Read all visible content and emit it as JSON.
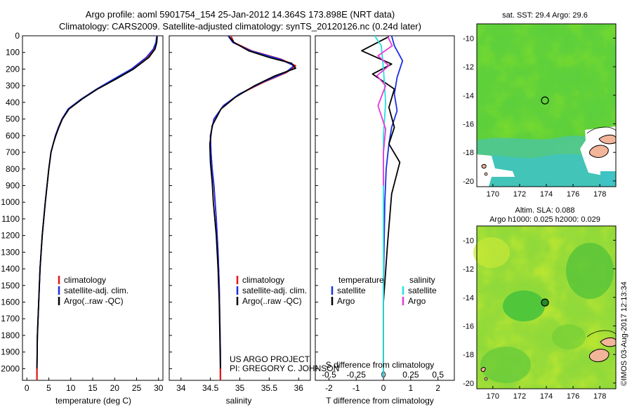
{
  "title": {
    "line1": "Argo profile: aoml 5901754_154 25-Jan-2012 14.364S 173.898E (NRT data)",
    "line2": "Climatology: CARS2009. Satellite-adjusted climatology: synTS_20120126.nc (0.24d later)"
  },
  "colors": {
    "climatology": "#e8141a",
    "satellite": "#1a2ee6",
    "argo": "#000000",
    "sal_satellite": "#25e0e0",
    "sal_argo": "#e83ad8",
    "map_marker": "#2a8a2a",
    "land": "#f2b59a",
    "missing": "#ffffff"
  },
  "depth_axis": {
    "ticks": [
      0,
      100,
      200,
      300,
      400,
      500,
      600,
      700,
      800,
      900,
      1000,
      1100,
      1200,
      1300,
      1400,
      1500,
      1600,
      1700,
      1800,
      1900,
      2000
    ],
    "ylim": [
      0,
      2070
    ],
    "inverted": true
  },
  "panels": {
    "temperature": {
      "xlabel": "temperature (deg C)"
    },
    "salinity": {
      "xlabel": "salinity"
    },
    "difference": {
      "xlabel_top": "S difference from climatology",
      "xlabel_bottom": "T difference from climatology"
    }
  },
  "legend_profiles": {
    "climatology": "climatology",
    "satellite": "satellite-adj. clim.",
    "argo": "Argo(..raw -QC)"
  },
  "legend_diff": {
    "temperature_header": "temperature",
    "salinity_header": "salinity",
    "satellite": "satellite",
    "argo": "Argo"
  },
  "project": {
    "line1": "US ARGO PROJECT",
    "line2": "PI: GREGORY C. JOHNSON"
  },
  "maps": {
    "sst": {
      "title": "sat. SST: 29.4  Argo: 29.6"
    },
    "sla": {
      "title1": "Altim. SLA: 0.088",
      "title2": "Argo h1000: 0.025 h2000: 0.029"
    },
    "lon_ticks": [
      170,
      172,
      174,
      176,
      178
    ],
    "lat_ticks": [
      -10,
      -12,
      -14,
      -16,
      -18,
      -20
    ],
    "marker": {
      "lon": 173.898,
      "lat": -14.364
    }
  },
  "credit": "©IMOS 03-Aug-2017 12:13:34",
  "chart_data": [
    {
      "type": "line",
      "name": "temperature-profile",
      "xlabel": "temperature (deg C)",
      "ylabel": "depth",
      "xlim": [
        -1,
        31
      ],
      "ylim": [
        0,
        2070
      ],
      "xticks": [
        0,
        5,
        10,
        15,
        20,
        25,
        30
      ],
      "series": [
        {
          "name": "climatology",
          "color_key": "climatology",
          "x": [
            29.7,
            29.5,
            29.0,
            27.5,
            24.0,
            20.0,
            16.0,
            12.5,
            9.5,
            8.0,
            7.2,
            6.5,
            6.0,
            5.5,
            5.0,
            4.2,
            3.5,
            3.0,
            2.7,
            2.4,
            2.3,
            2.3
          ],
          "depth": [
            0,
            40,
            80,
            130,
            200,
            260,
            320,
            380,
            440,
            500,
            550,
            600,
            650,
            700,
            800,
            1000,
            1200,
            1400,
            1600,
            1800,
            2000,
            2050
          ]
        },
        {
          "name": "satellite-adj. clim.",
          "color_key": "satellite",
          "x": [
            29.6,
            29.4,
            28.8,
            27.2,
            23.8,
            19.8,
            15.9,
            12.4,
            9.4,
            8.0,
            7.2,
            6.5,
            6.0,
            5.5,
            5.0,
            4.2,
            3.5,
            3.0,
            2.7,
            2.4,
            2.3,
            2.3
          ],
          "depth": [
            0,
            40,
            80,
            130,
            200,
            260,
            320,
            380,
            440,
            500,
            550,
            600,
            650,
            700,
            800,
            1000,
            1200,
            1400,
            1600,
            1800,
            2000,
            2050
          ]
        },
        {
          "name": "Argo(..raw -QC)",
          "color_key": "argo",
          "x": [
            29.7,
            29.6,
            29.2,
            27.8,
            24.3,
            20.3,
            16.1,
            12.6,
            9.6,
            8.1,
            7.3,
            6.6,
            6.0,
            5.5,
            5.0,
            4.2,
            3.5,
            3.0,
            2.7,
            2.4,
            2.3
          ],
          "depth": [
            5,
            40,
            80,
            130,
            200,
            260,
            320,
            380,
            440,
            500,
            550,
            600,
            650,
            700,
            800,
            1000,
            1200,
            1400,
            1600,
            1800,
            2000
          ]
        }
      ]
    },
    {
      "type": "line",
      "name": "salinity-profile",
      "xlabel": "salinity",
      "ylabel": "depth",
      "xlim": [
        33.8,
        36.2
      ],
      "ylim": [
        0,
        2070
      ],
      "xticks": [
        34,
        34.5,
        35,
        35.5,
        36
      ],
      "series": [
        {
          "name": "climatology",
          "color_key": "climatology",
          "x": [
            34.85,
            34.9,
            35.2,
            35.7,
            35.95,
            35.8,
            35.4,
            35.0,
            34.72,
            34.56,
            34.5,
            34.51,
            34.53,
            34.56,
            34.6,
            34.63,
            34.65,
            34.66,
            34.67,
            34.67
          ],
          "depth": [
            0,
            40,
            90,
            140,
            180,
            220,
            280,
            350,
            420,
            500,
            600,
            700,
            800,
            900,
            1100,
            1300,
            1500,
            1700,
            1900,
            2050
          ]
        },
        {
          "name": "satellite-adj. clim.",
          "color_key": "satellite",
          "x": [
            34.8,
            34.88,
            35.18,
            35.68,
            35.92,
            35.78,
            35.38,
            34.99,
            34.72,
            34.56,
            34.5,
            34.51,
            34.53,
            34.56,
            34.6,
            34.63,
            34.65,
            34.66,
            34.67,
            34.67
          ],
          "depth": [
            0,
            40,
            90,
            140,
            180,
            220,
            280,
            350,
            420,
            500,
            600,
            700,
            800,
            900,
            1100,
            1300,
            1500,
            1700,
            1900,
            2050
          ]
        },
        {
          "name": "Argo(..raw -QC)",
          "color_key": "argo",
          "x": [
            34.82,
            34.9,
            35.15,
            35.5,
            35.88,
            35.95,
            35.6,
            35.25,
            34.92,
            34.68,
            34.53,
            34.49,
            34.5,
            34.53,
            34.55,
            34.6,
            34.63,
            34.65,
            34.66,
            34.67
          ],
          "depth": [
            5,
            40,
            90,
            130,
            165,
            195,
            240,
            300,
            370,
            440,
            540,
            650,
            760,
            880,
            1000,
            1200,
            1400,
            1600,
            1800,
            2000
          ]
        }
      ]
    },
    {
      "type": "line",
      "name": "difference-from-climatology",
      "xlabel_top": "S difference from climatology",
      "xlabel_bottom": "T difference from climatology",
      "t_xlim": [
        -2.5,
        2.6
      ],
      "t_xticks": [
        -2,
        -1,
        0,
        1,
        2
      ],
      "s_xticks": [
        -0.5,
        -0.25,
        0,
        0.25,
        0.5
      ],
      "s_to_t_scale": 4,
      "ylim": [
        0,
        2070
      ],
      "series": [
        {
          "name": "temperature satellite",
          "color_key": "satellite",
          "quantity": "T",
          "dx": [
            0.3,
            0.4,
            0.7,
            0.5,
            0.4,
            0.5,
            0.3,
            0.2,
            0.1,
            0.05,
            0.0,
            0.0
          ],
          "depth": [
            0,
            60,
            150,
            250,
            350,
            450,
            550,
            650,
            800,
            1000,
            1500,
            2050
          ]
        },
        {
          "name": "temperature Argo",
          "color_key": "argo",
          "quantity": "T",
          "dx": [
            0.2,
            -0.8,
            0.3,
            -0.4,
            0.4,
            0.2,
            0.4,
            0.2,
            0.6,
            0.3,
            0.15,
            0.0,
            0.0
          ],
          "depth": [
            5,
            90,
            170,
            230,
            320,
            430,
            550,
            650,
            760,
            950,
            1250,
            1600,
            2000
          ]
        },
        {
          "name": "salinity satellite",
          "color_key": "sal_satellite",
          "quantity": "S",
          "dx": [
            -0.08,
            -0.02,
            0.0,
            0.02,
            0.0,
            0.0,
            0.0,
            0.0
          ],
          "depth": [
            0,
            60,
            200,
            400,
            600,
            1000,
            1500,
            2050
          ]
        },
        {
          "name": "salinity Argo",
          "color_key": "sal_argo",
          "quantity": "S",
          "dx": [
            0.04,
            0.08,
            -0.05,
            0.05,
            -0.06,
            0.02,
            -0.05,
            0.02,
            0.0,
            0.0
          ],
          "depth": [
            5,
            60,
            120,
            180,
            240,
            300,
            420,
            560,
            700,
            900
          ]
        }
      ]
    }
  ]
}
